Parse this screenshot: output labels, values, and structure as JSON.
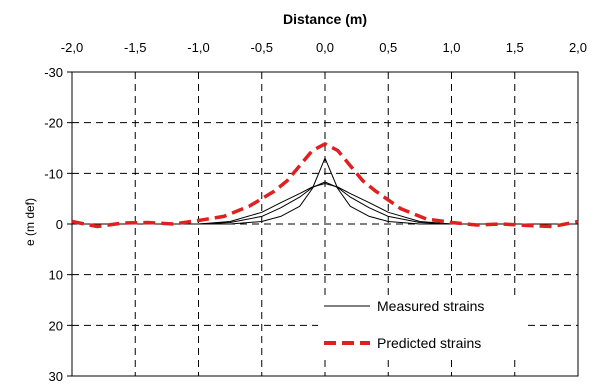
{
  "chart_data": {
    "type": "line",
    "title": "Distance (m)",
    "xlabel": "Distance (m)",
    "ylabel": "e (m def)",
    "x_ticks": [
      "-2,0",
      "-1,5",
      "-1,0",
      "-0,5",
      "0,0",
      "0,5",
      "1,0",
      "1,5",
      "2,0"
    ],
    "y_ticks": [
      "-30",
      "-20",
      "-10",
      "0",
      "10",
      "20",
      "30"
    ],
    "xlim": [
      -2.0,
      2.0
    ],
    "ylim": [
      -30,
      30
    ],
    "y_inverted": true,
    "x_axis_position": "top",
    "grid": true,
    "legend_position": "bottom-right",
    "series": [
      {
        "name": "Measured strains",
        "color": "#000000",
        "style": "solid",
        "x": [
          -2.0,
          -1.5,
          -1.0,
          -0.75,
          -0.5,
          -0.35,
          -0.2,
          -0.1,
          0.0,
          0.1,
          0.2,
          0.35,
          0.5,
          0.75,
          1.0,
          1.5,
          2.0
        ],
        "y": [
          0,
          0,
          0,
          0,
          -0.5,
          -1.5,
          -3.5,
          -7,
          -13,
          -7,
          -3.5,
          -1.5,
          -0.5,
          0,
          0,
          0,
          0
        ]
      },
      {
        "name": "",
        "color": "#000000",
        "style": "solid",
        "x": [
          -2.0,
          -1.5,
          -1.0,
          -0.75,
          -0.5,
          -0.35,
          -0.2,
          -0.1,
          0.0,
          0.1,
          0.2,
          0.35,
          0.5,
          0.75,
          1.0,
          1.5,
          2.0
        ],
        "y": [
          0,
          0,
          0,
          -0.3,
          -1.5,
          -3.2,
          -5.3,
          -7.2,
          -8.3,
          -7.2,
          -5.3,
          -3.2,
          -1.5,
          -0.3,
          0,
          0,
          0
        ]
      },
      {
        "name": "",
        "color": "#000000",
        "style": "solid",
        "x": [
          -2.0,
          -1.5,
          -1.0,
          -0.75,
          -0.5,
          -0.35,
          -0.2,
          -0.1,
          0.0,
          0.1,
          0.2,
          0.35,
          0.5,
          0.75,
          1.0,
          1.5,
          2.0
        ],
        "y": [
          0,
          0,
          0,
          -0.5,
          -2.3,
          -4.2,
          -6.0,
          -7.3,
          -8.0,
          -7.3,
          -6.0,
          -4.2,
          -2.3,
          -0.5,
          0,
          0,
          0
        ]
      },
      {
        "name": "Predicted strains",
        "color": "#e02020",
        "style": "dashed",
        "x": [
          -2.0,
          -1.8,
          -1.6,
          -1.4,
          -1.2,
          -1.0,
          -0.8,
          -0.6,
          -0.4,
          -0.3,
          -0.2,
          -0.1,
          0.0,
          0.1,
          0.2,
          0.3,
          0.4,
          0.6,
          0.8,
          1.0,
          1.2,
          1.4,
          1.6,
          1.8,
          2.0
        ],
        "y": [
          -0.5,
          0.5,
          -0.2,
          -0.3,
          0.0,
          -0.7,
          -1.5,
          -3.5,
          -6.5,
          -8.5,
          -11.5,
          -14.5,
          -15.8,
          -14.5,
          -11.5,
          -8.5,
          -6.5,
          -3.0,
          -1.0,
          -0.3,
          0.2,
          0.0,
          0.3,
          0.5,
          -0.5
        ]
      }
    ]
  }
}
